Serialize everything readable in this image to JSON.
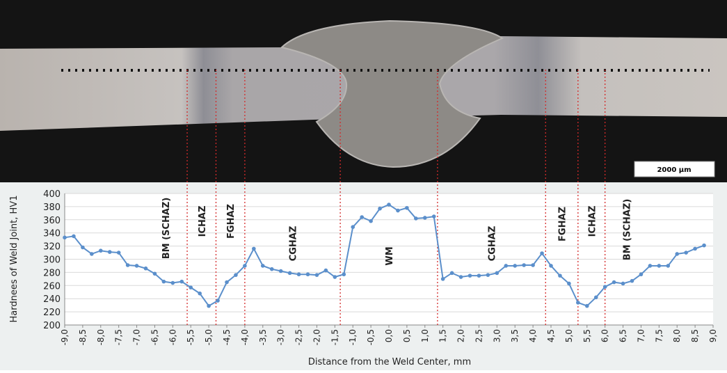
{
  "micrograph": {
    "scale_bar": "2000 µm"
  },
  "chart_data": {
    "type": "line",
    "ylabel": "Hardnees of Weld Joint, HV1",
    "xlabel": "Distance from the Weld Center, mm",
    "x": [
      -9,
      -8.75,
      -8.5,
      -8.25,
      -8,
      -7.75,
      -7.5,
      -7.25,
      -7,
      -6.75,
      -6.5,
      -6.25,
      -6,
      -5.75,
      -5.5,
      -5.25,
      -5,
      -4.75,
      -4.5,
      -4.25,
      -4,
      -3.75,
      -3.5,
      -3.25,
      -3,
      -2.75,
      -2.5,
      -2.25,
      -2,
      -1.75,
      -1.5,
      -1.25,
      -1,
      -0.75,
      -0.5,
      -0.25,
      0,
      0.25,
      0.5,
      0.75,
      1,
      1.25,
      1.5,
      1.75,
      2,
      2.25,
      2.5,
      2.75,
      3,
      3.25,
      3.5,
      3.75,
      4,
      4.25,
      4.5,
      4.75,
      5,
      5.25,
      5.5,
      5.75,
      6,
      6.25,
      6.5,
      6.75,
      7,
      7.25,
      7.5,
      7.75,
      8,
      8.25,
      8.5,
      8.75
    ],
    "series": [
      {
        "color": "#5b8fcb",
        "values": [
          333,
          335,
          318,
          308,
          313,
          311,
          310,
          291,
          290,
          286,
          278,
          266,
          264,
          266,
          257,
          248,
          229,
          237,
          265,
          276,
          290,
          316,
          290,
          285,
          282,
          279,
          277,
          277,
          276,
          283,
          273,
          277,
          349,
          364,
          358,
          377,
          383,
          374,
          378,
          362,
          363,
          365,
          270,
          279,
          273,
          275,
          275,
          276,
          279,
          290,
          290,
          291,
          291,
          309,
          290,
          275,
          263,
          234,
          229,
          242,
          258,
          265,
          263,
          267,
          277,
          290,
          290,
          290,
          308,
          310,
          316,
          321
        ]
      }
    ],
    "zones": [
      "BM (SCHAZ)",
      "ICHAZ",
      "FGHAZ",
      "CGHAZ",
      "WM",
      "CGHAZ",
      "FGHAZ",
      "ICHAZ",
      "BM (SCHAZ)"
    ],
    "zone_boundaries": [
      -5.6,
      -4.8,
      -4.0,
      -1.35,
      1.35,
      4.35,
      5.25,
      6.0
    ],
    "xlim": [
      -9,
      9
    ],
    "xticks": [
      {
        "value": -9,
        "label": "-9,0"
      },
      {
        "value": -8.5,
        "label": "-8,5"
      },
      {
        "value": -8,
        "label": "-8,0"
      },
      {
        "value": -7.5,
        "label": "-7,5"
      },
      {
        "value": -7,
        "label": "-7,0"
      },
      {
        "value": -6.5,
        "label": "-6,5"
      },
      {
        "value": -6,
        "label": "-6,0"
      },
      {
        "value": -5.5,
        "label": "-5,5"
      },
      {
        "value": -5,
        "label": "-5,0"
      },
      {
        "value": -4.5,
        "label": "-4,5"
      },
      {
        "value": -4,
        "label": "-4,0"
      },
      {
        "value": -3.5,
        "label": "-3,5"
      },
      {
        "value": -3,
        "label": "-3,0"
      },
      {
        "value": -2.5,
        "label": "-2,5"
      },
      {
        "value": -2,
        "label": "-2,0"
      },
      {
        "value": -1.5,
        "label": "-1,5"
      },
      {
        "value": -1,
        "label": "-1,0"
      },
      {
        "value": -0.5,
        "label": "-0,5"
      },
      {
        "value": 0,
        "label": "0,0"
      },
      {
        "value": 0.5,
        "label": "0,5"
      },
      {
        "value": 1,
        "label": "1,0"
      },
      {
        "value": 1.5,
        "label": "1,5"
      },
      {
        "value": 2,
        "label": "2,0"
      },
      {
        "value": 2.5,
        "label": "2,5"
      },
      {
        "value": 3,
        "label": "3,0"
      },
      {
        "value": 3.5,
        "label": "3,5"
      },
      {
        "value": 4,
        "label": "4,0"
      },
      {
        "value": 4.5,
        "label": "4,5"
      },
      {
        "value": 5,
        "label": "5,0"
      },
      {
        "value": 5.5,
        "label": "5,5"
      },
      {
        "value": 6,
        "label": "6,0"
      },
      {
        "value": 6.5,
        "label": "6,5"
      },
      {
        "value": 7,
        "label": "7,0"
      },
      {
        "value": 7.5,
        "label": "7,5"
      },
      {
        "value": 8,
        "label": "8,0"
      },
      {
        "value": 8.5,
        "label": "8,5"
      },
      {
        "value": 9,
        "label": "9,0"
      }
    ],
    "ylim": [
      200,
      400
    ],
    "yticks": [
      200,
      220,
      240,
      260,
      280,
      300,
      320,
      340,
      360,
      380,
      400
    ],
    "grid": true
  }
}
